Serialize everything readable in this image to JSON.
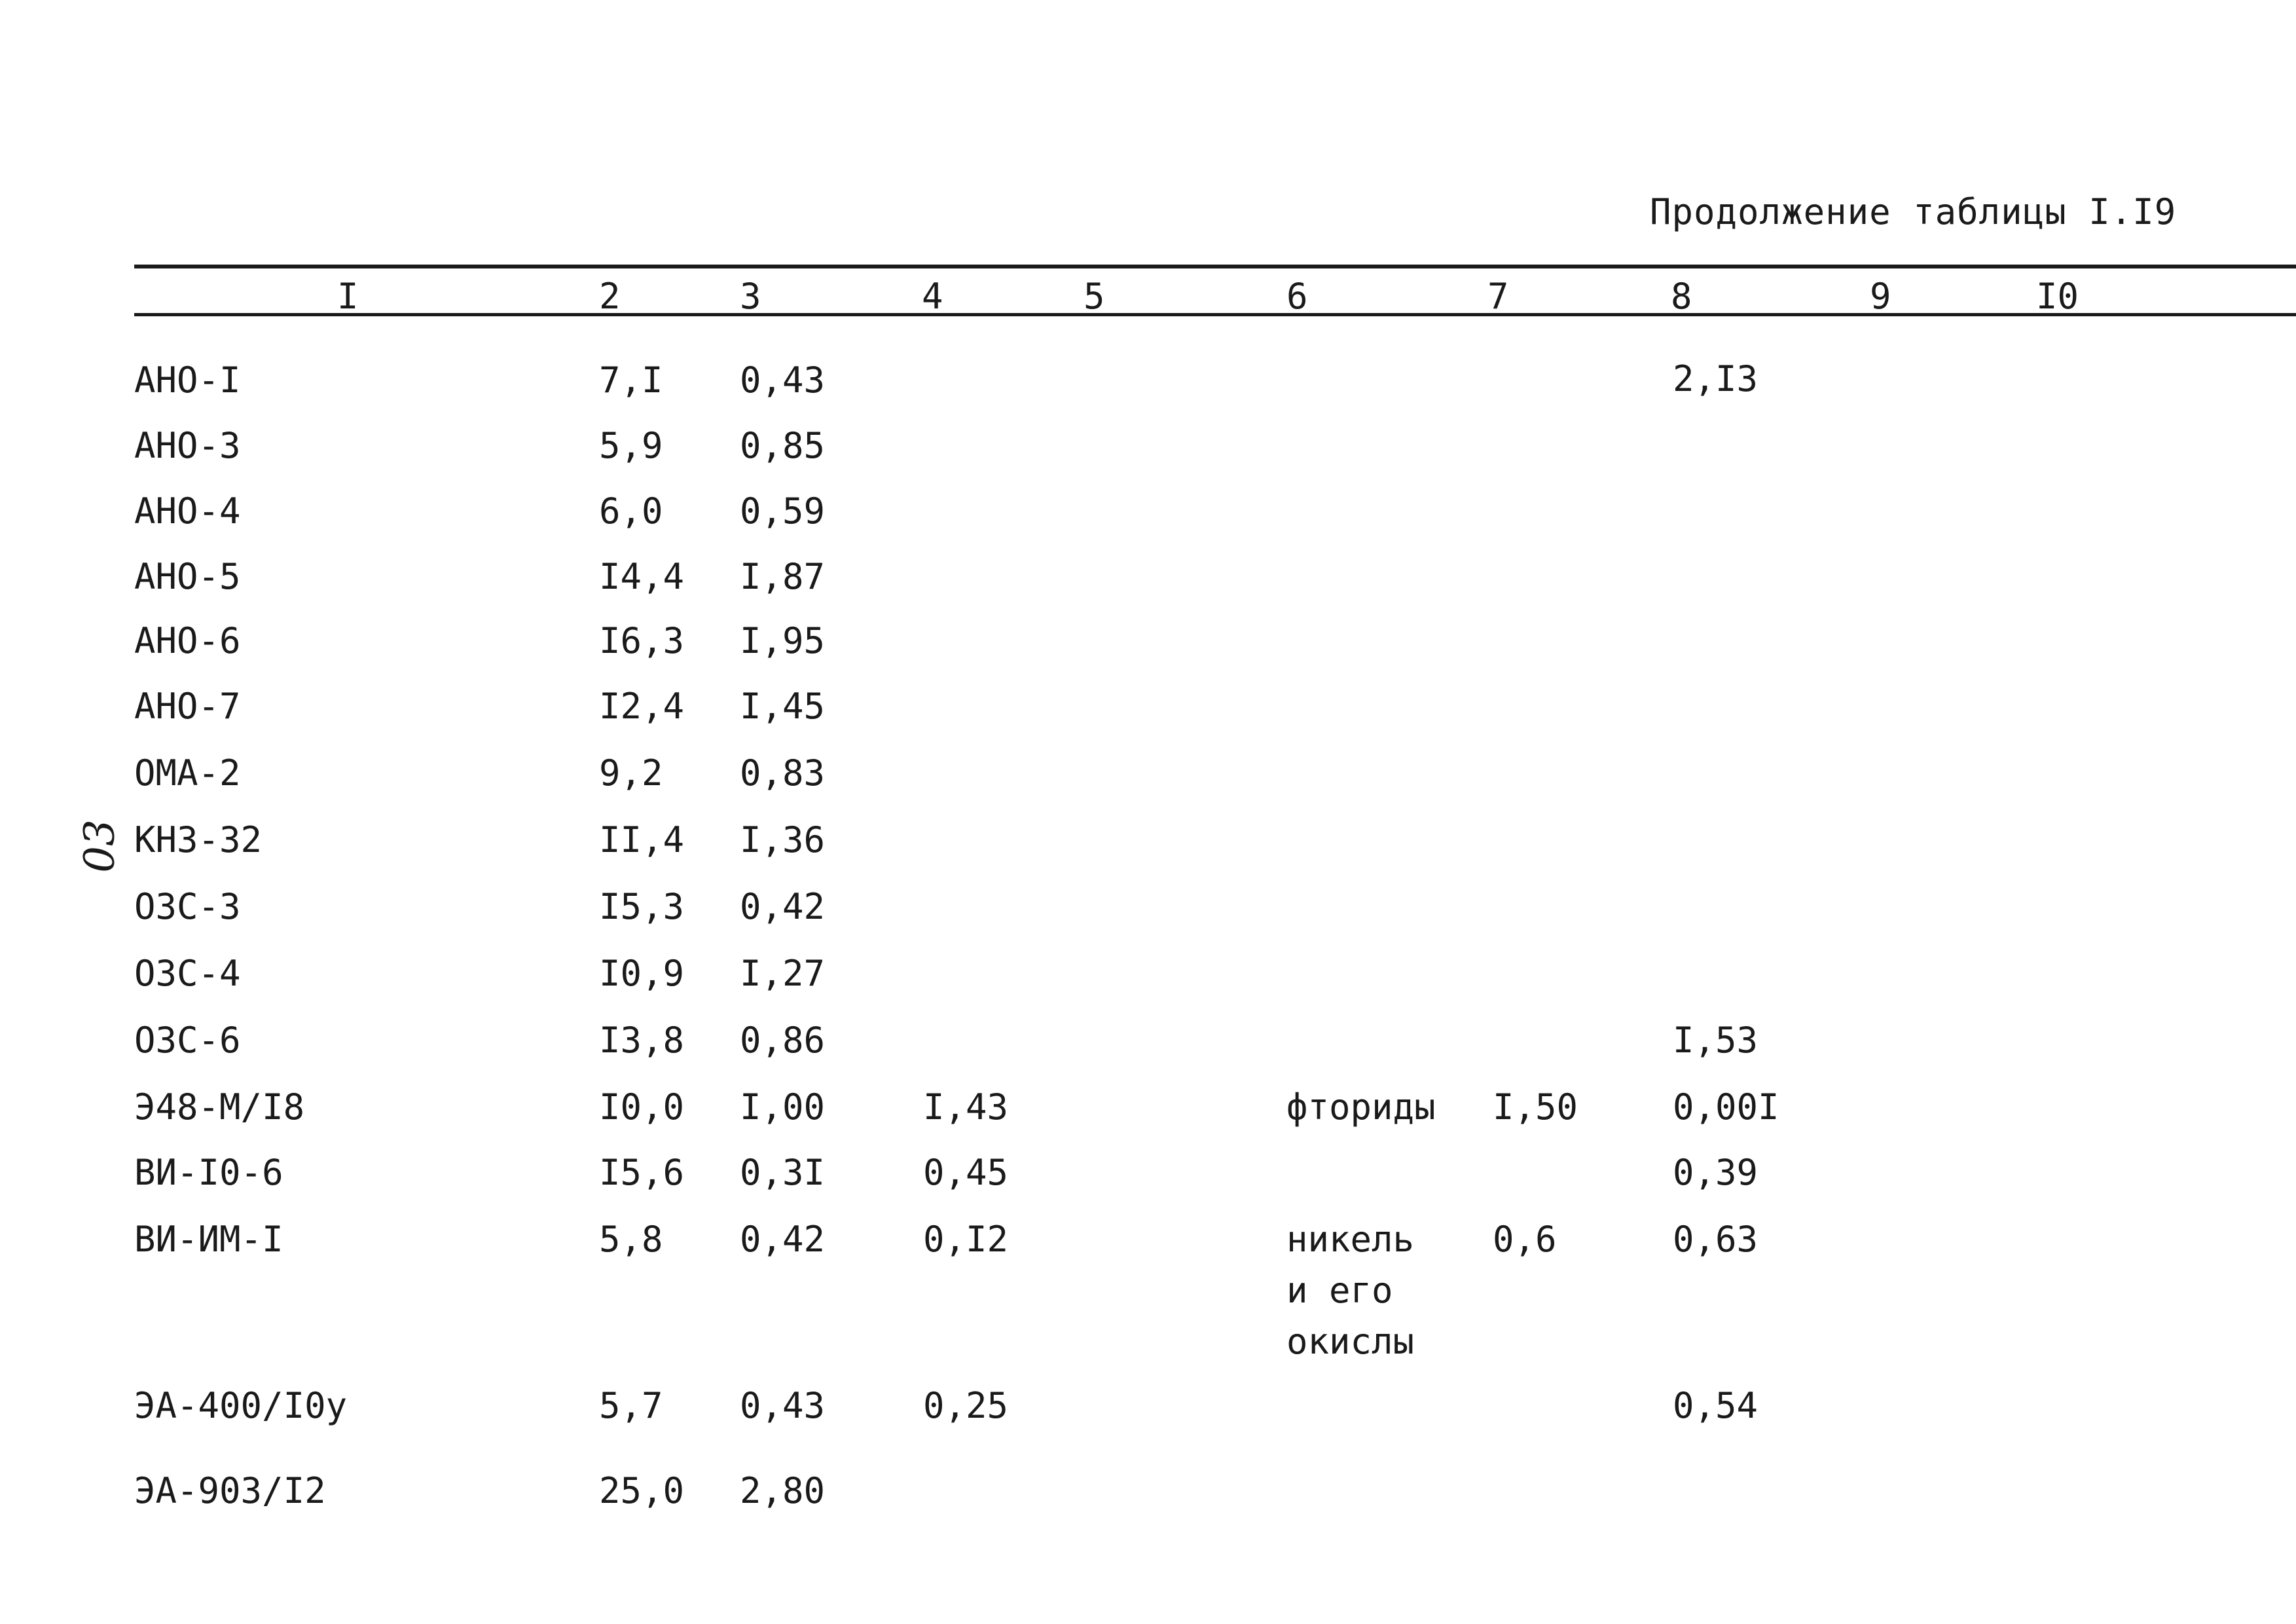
{
  "caption": "Продолжение таблицы I.I9",
  "margin_mark": "03",
  "headers": [
    "I",
    "2",
    "3",
    "4",
    "5",
    "6",
    "7",
    "8",
    "9",
    "I0"
  ],
  "rows": [
    {
      "c1": "АНО-I",
      "c2": "7,I",
      "c3": "0,43",
      "c4": "",
      "c6": "",
      "c7": "",
      "c8": "2,I3"
    },
    {
      "c1": "АНО-3",
      "c2": "5,9",
      "c3": "0,85",
      "c4": "",
      "c6": "",
      "c7": "",
      "c8": ""
    },
    {
      "c1": "АНО-4",
      "c2": "6,0",
      "c3": "0,59",
      "c4": "",
      "c6": "",
      "c7": "",
      "c8": ""
    },
    {
      "c1": "АНО-5",
      "c2": "I4,4",
      "c3": "I,87",
      "c4": "",
      "c6": "",
      "c7": "",
      "c8": ""
    },
    {
      "c1": "АНО-6",
      "c2": "I6,3",
      "c3": "I,95",
      "c4": "",
      "c6": "",
      "c7": "",
      "c8": ""
    },
    {
      "c1": "АНО-7",
      "c2": "I2,4",
      "c3": "I,45",
      "c4": "",
      "c6": "",
      "c7": "",
      "c8": ""
    },
    {
      "c1": "ОМА-2",
      "c2": "9,2",
      "c3": "0,83",
      "c4": "",
      "c6": "",
      "c7": "",
      "c8": ""
    },
    {
      "c1": "КНЗ-32",
      "c2": "II,4",
      "c3": "I,36",
      "c4": "",
      "c6": "",
      "c7": "",
      "c8": ""
    },
    {
      "c1": "ОЗС-3",
      "c2": "I5,3",
      "c3": "0,42",
      "c4": "",
      "c6": "",
      "c7": "",
      "c8": ""
    },
    {
      "c1": "ОЗС-4",
      "c2": "I0,9",
      "c3": "I,27",
      "c4": "",
      "c6": "",
      "c7": "",
      "c8": ""
    },
    {
      "c1": "ОЗС-6",
      "c2": "I3,8",
      "c3": "0,86",
      "c4": "",
      "c6": "",
      "c7": "",
      "c8": "I,53"
    },
    {
      "c1": "Э48-М/I8",
      "c2": "I0,0",
      "c3": "I,00",
      "c4": "I,43",
      "c6": "фториды",
      "c7": "I,50",
      "c8": "0,00I"
    },
    {
      "c1": "ВИ-I0-6",
      "c2": "I5,6",
      "c3": "0,3I",
      "c4": "0,45",
      "c6": "",
      "c7": "",
      "c8": "0,39"
    },
    {
      "c1": "ВИ-ИМ-I",
      "c2": "5,8",
      "c3": "0,42",
      "c4": "0,I2",
      "c6": "никель\nи его\nокислы",
      "c7": "0,6",
      "c8": "0,63"
    },
    {
      "c1": "ЭА-400/I0у",
      "c2": "5,7",
      "c3": "0,43",
      "c4": "0,25",
      "c6": "",
      "c7": "",
      "c8": "0,54"
    },
    {
      "c1": "ЭА-903/I2",
      "c2": "25,0",
      "c3": "2,80",
      "c4": "",
      "c6": "",
      "c7": "",
      "c8": ""
    }
  ]
}
